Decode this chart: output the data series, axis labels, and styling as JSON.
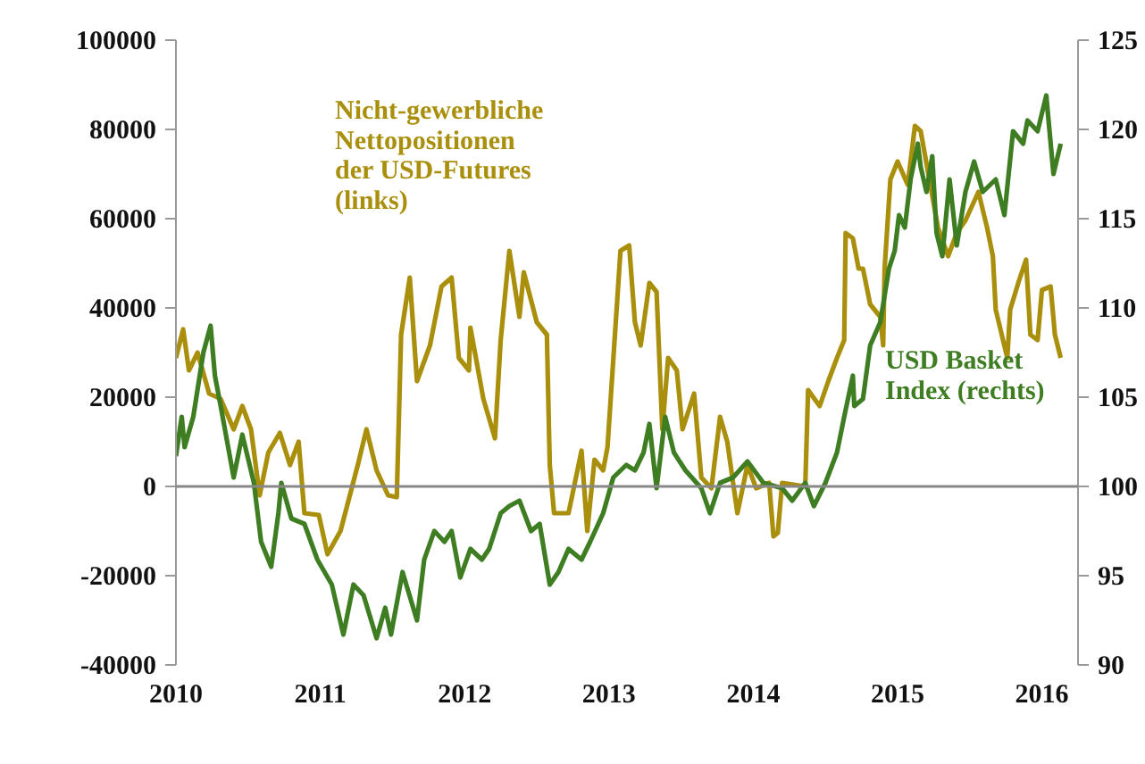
{
  "chart_data": {
    "type": "line",
    "xlim": [
      2010,
      2016.25
    ],
    "xticks": [
      2010,
      2011,
      2012,
      2013,
      2014,
      2015,
      2016
    ],
    "ylim": [
      -40000,
      100000
    ],
    "yticks": [
      -40000,
      -20000,
      0,
      20000,
      40000,
      60000,
      80000,
      100000
    ],
    "y2lim": [
      90,
      125
    ],
    "y2ticks": [
      90,
      95,
      100,
      105,
      110,
      115,
      120,
      125
    ],
    "grid": false,
    "ref_lines": [
      {
        "axis": "y",
        "value": 0,
        "color": "#888888"
      }
    ],
    "series": [
      {
        "name": "Nicht-gewerbliche\nNettopositionen\nder USD-Futures\n(links)",
        "color": "#a98f0c",
        "axis": "y",
        "x": [
          2010.0,
          2010.05,
          2010.09,
          2010.15,
          2010.23,
          2010.31,
          2010.4,
          2010.46,
          2010.52,
          2010.58,
          2010.64,
          2010.72,
          2010.79,
          2010.85,
          2010.89,
          2010.99,
          2011.05,
          2011.14,
          2011.26,
          2011.32,
          2011.39,
          2011.47,
          2011.53,
          2011.56,
          2011.62,
          2011.67,
          2011.76,
          2011.84,
          2011.91,
          2011.96,
          2012.03,
          2012.04,
          2012.13,
          2012.21,
          2012.25,
          2012.31,
          2012.38,
          2012.41,
          2012.5,
          2012.57,
          2012.59,
          2012.62,
          2012.72,
          2012.81,
          2012.85,
          2012.9,
          2012.96,
          2012.99,
          2013.08,
          2013.14,
          2013.18,
          2013.22,
          2013.28,
          2013.33,
          2013.37,
          2013.41,
          2013.47,
          2013.51,
          2013.59,
          2013.64,
          2013.71,
          2013.77,
          2013.82,
          2013.89,
          2013.96,
          2014.02,
          2014.11,
          2014.14,
          2014.17,
          2014.2,
          2014.36,
          2014.38,
          2014.46,
          2014.52,
          2014.58,
          2014.63,
          2014.64,
          2014.69,
          2014.73,
          2014.76,
          2014.81,
          2014.88,
          2014.9,
          2014.91,
          2014.95,
          2015.0,
          2015.07,
          2015.12,
          2015.16,
          2015.22,
          2015.28,
          2015.35,
          2015.41,
          2015.47,
          2015.56,
          2015.62,
          2015.66,
          2015.68,
          2015.76,
          2015.78,
          2015.84,
          2015.89,
          2015.92,
          2015.97,
          2016.0,
          2016.06,
          2016.09,
          2016.13
        ],
        "values": [
          28800,
          35200,
          26000,
          30000,
          20800,
          19600,
          12800,
          18000,
          12800,
          -2000,
          7600,
          12000,
          4800,
          10000,
          -6000,
          -6400,
          -15200,
          -10000,
          4800,
          12800,
          3600,
          -2000,
          -2400,
          34000,
          46800,
          23600,
          31600,
          44800,
          46800,
          28800,
          26000,
          35600,
          19600,
          10800,
          32800,
          52800,
          38000,
          48000,
          36800,
          34000,
          4800,
          -6000,
          -6000,
          8000,
          -10000,
          6000,
          3600,
          8800,
          52800,
          54000,
          36800,
          31600,
          45600,
          43600,
          12800,
          28800,
          26000,
          12800,
          20800,
          2000,
          -400,
          15600,
          10000,
          -6000,
          4800,
          -400,
          800,
          -11200,
          -10400,
          800,
          0,
          21600,
          18000,
          23600,
          28800,
          32800,
          56800,
          55600,
          48800,
          48800,
          40800,
          38000,
          31600,
          48800,
          68800,
          72800,
          67600,
          80800,
          79600,
          68800,
          58000,
          51600,
          56800,
          59600,
          66000,
          58000,
          51600,
          39600,
          28800,
          39600,
          46000,
          50800,
          34000,
          32800,
          44000,
          44800,
          34000,
          28800
        ]
      },
      {
        "name": "USD Basket\nIndex (rechts)",
        "color": "#3e7d22",
        "axis": "y2",
        "x": [
          2010.0,
          2010.04,
          2010.06,
          2010.12,
          2010.19,
          2010.24,
          2010.27,
          2010.31,
          2010.4,
          2010.46,
          2010.54,
          2010.59,
          2010.66,
          2010.71,
          2010.73,
          2010.8,
          2010.89,
          2010.98,
          2011.08,
          2011.16,
          2011.23,
          2011.3,
          2011.39,
          2011.45,
          2011.49,
          2011.57,
          2011.67,
          2011.72,
          2011.79,
          2011.86,
          2011.91,
          2011.97,
          2012.04,
          2012.12,
          2012.17,
          2012.25,
          2012.31,
          2012.38,
          2012.46,
          2012.52,
          2012.59,
          2012.65,
          2012.72,
          2012.81,
          2012.87,
          2012.96,
          2013.03,
          2013.12,
          2013.18,
          2013.24,
          2013.28,
          2013.33,
          2013.39,
          2013.45,
          2013.53,
          2013.64,
          2013.7,
          2013.77,
          2013.86,
          2013.96,
          2014.07,
          2014.2,
          2014.27,
          2014.36,
          2014.42,
          2014.5,
          2014.58,
          2014.63,
          2014.69,
          2014.7,
          2014.76,
          2014.81,
          2014.88,
          2014.94,
          2014.98,
          2015.01,
          2015.05,
          2015.09,
          2015.14,
          2015.16,
          2015.2,
          2015.24,
          2015.27,
          2015.31,
          2015.36,
          2015.41,
          2015.47,
          2015.53,
          2015.59,
          2015.68,
          2015.74,
          2015.8,
          2015.87,
          2015.9,
          2015.97,
          2016.03,
          2016.08,
          2016.13
        ],
        "values": [
          101.7,
          103.9,
          102.2,
          103.9,
          107.5,
          109.0,
          106.2,
          104.5,
          100.5,
          102.9,
          100.2,
          96.9,
          95.5,
          98.5,
          100.2,
          98.2,
          97.9,
          95.9,
          94.5,
          91.7,
          94.5,
          93.9,
          91.5,
          93.2,
          91.7,
          95.2,
          92.5,
          95.9,
          97.5,
          96.9,
          97.5,
          94.9,
          96.5,
          95.9,
          96.5,
          98.5,
          98.9,
          99.2,
          97.5,
          97.9,
          94.5,
          95.2,
          96.5,
          95.9,
          96.9,
          98.5,
          100.5,
          101.2,
          100.9,
          101.9,
          103.5,
          99.9,
          103.9,
          101.9,
          100.9,
          99.9,
          98.5,
          100.2,
          100.5,
          101.4,
          100.2,
          99.9,
          99.2,
          100.2,
          98.9,
          100.2,
          101.9,
          103.9,
          106.2,
          104.5,
          104.9,
          107.9,
          109.2,
          112.2,
          113.2,
          115.2,
          114.5,
          117.2,
          119.2,
          117.9,
          116.5,
          118.5,
          114.2,
          112.9,
          117.2,
          113.5,
          116.5,
          118.2,
          116.5,
          117.2,
          115.2,
          119.9,
          119.2,
          120.5,
          119.9,
          121.9,
          117.5,
          119.2
        ]
      }
    ]
  }
}
